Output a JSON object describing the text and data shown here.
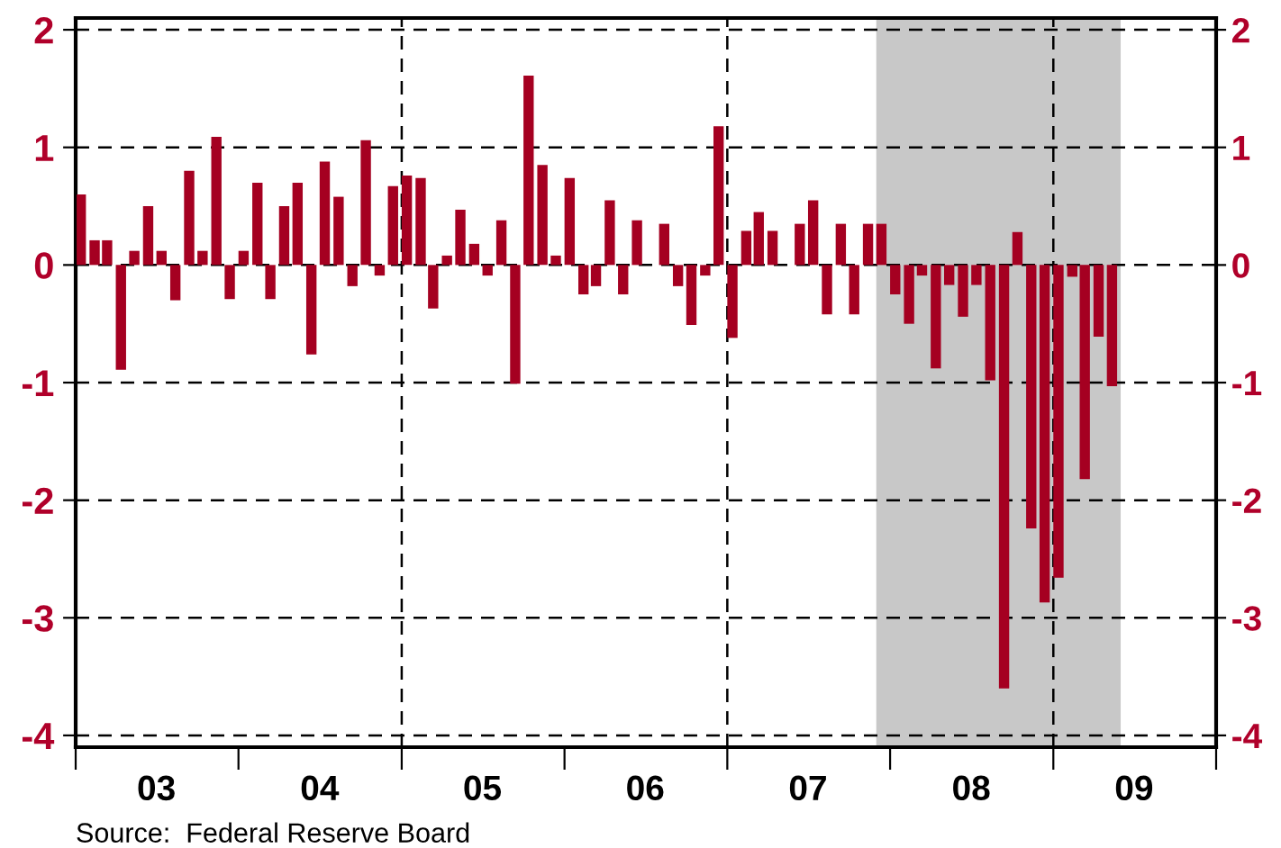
{
  "chart_data": {
    "type": "bar",
    "color": "#a50021",
    "x": [
      "2003-01",
      "2003-02",
      "2003-03",
      "2003-04",
      "2003-05",
      "2003-06",
      "2003-07",
      "2003-08",
      "2003-09",
      "2003-10",
      "2003-11",
      "2003-12",
      "2004-01",
      "2004-02",
      "2004-03",
      "2004-04",
      "2004-05",
      "2004-06",
      "2004-07",
      "2004-08",
      "2004-09",
      "2004-10",
      "2004-11",
      "2004-12",
      "2005-01",
      "2005-02",
      "2005-03",
      "2005-04",
      "2005-05",
      "2005-06",
      "2005-07",
      "2005-08",
      "2005-09",
      "2005-10",
      "2005-11",
      "2005-12",
      "2006-01",
      "2006-02",
      "2006-03",
      "2006-04",
      "2006-05",
      "2006-06",
      "2006-07",
      "2006-08",
      "2006-09",
      "2006-10",
      "2006-11",
      "2006-12",
      "2007-01",
      "2007-02",
      "2007-03",
      "2007-04",
      "2007-05",
      "2007-06",
      "2007-07",
      "2007-08",
      "2007-09",
      "2007-10",
      "2007-11",
      "2007-12",
      "2008-01",
      "2008-02",
      "2008-03",
      "2008-04",
      "2008-05",
      "2008-06",
      "2008-07",
      "2008-08",
      "2008-09",
      "2008-10",
      "2008-11",
      "2008-12",
      "2009-01",
      "2009-02",
      "2009-03",
      "2009-04",
      "2009-05"
    ],
    "values": [
      0.6,
      0.21,
      0.21,
      -0.89,
      0.12,
      0.5,
      0.12,
      -0.3,
      0.8,
      0.12,
      1.09,
      -0.29,
      0.12,
      0.7,
      -0.29,
      0.5,
      0.7,
      -0.76,
      0.88,
      0.58,
      -0.18,
      1.06,
      -0.09,
      0.67,
      0.76,
      0.74,
      -0.37,
      0.08,
      0.47,
      0.18,
      -0.09,
      0.38,
      -1.01,
      1.61,
      0.85,
      0.08,
      0.74,
      -0.25,
      -0.18,
      0.55,
      -0.25,
      0.38,
      0,
      0.35,
      -0.18,
      -0.51,
      -0.09,
      1.18,
      -0.62,
      0.29,
      0.45,
      0.29,
      0,
      0.35,
      0.55,
      -0.42,
      0.35,
      -0.42,
      0.35,
      0.35,
      -0.25,
      -0.5,
      -0.09,
      -0.88,
      -0.17,
      -0.44,
      -0.17,
      -0.98,
      -3.6,
      0.28,
      -2.24,
      -2.87,
      -2.66,
      -0.1,
      -1.82,
      -0.61,
      -1.03
    ],
    "xlim": [
      "2003-01",
      "2010-01"
    ],
    "xticks": [
      {
        "value": "2003-01",
        "label": null
      },
      {
        "value": "2003-07",
        "label": "03"
      },
      {
        "value": "2004-01",
        "label": null
      },
      {
        "value": "2004-07",
        "label": "04"
      },
      {
        "value": "2005-01",
        "label": null
      },
      {
        "value": "2005-07",
        "label": "05"
      },
      {
        "value": "2006-01",
        "label": null
      },
      {
        "value": "2006-07",
        "label": "06"
      },
      {
        "value": "2007-01",
        "label": null
      },
      {
        "value": "2007-07",
        "label": "07"
      },
      {
        "value": "2008-01",
        "label": null
      },
      {
        "value": "2008-07",
        "label": "08"
      },
      {
        "value": "2009-01",
        "label": null
      },
      {
        "value": "2009-07",
        "label": "09"
      },
      {
        "value": "2010-01",
        "label": null
      }
    ],
    "ylim": [
      -4.1,
      2.1
    ],
    "yticks": [
      -4,
      -3,
      -2,
      -1,
      0,
      1,
      2
    ],
    "y2lim": [
      -4.1,
      2.1
    ],
    "y2ticks": [
      -4,
      -3,
      -2,
      -1,
      0,
      1,
      2
    ],
    "grid": "y",
    "ref_lines": [
      {
        "axis": "x",
        "value": "2005-01",
        "color": "#000000",
        "line_style": "dashed"
      },
      {
        "axis": "x",
        "value": "2007-01",
        "color": "#000000",
        "line_style": "dashed"
      },
      {
        "axis": "x",
        "value": "2009-01",
        "color": "#000000",
        "line_style": "dashed"
      }
    ],
    "bands": [
      {
        "axis": "x",
        "from": "2007-12",
        "to": "2009-06",
        "color": "#c8c8c8"
      }
    ],
    "annotations": [
      "Source:  Federal Reserve Board"
    ]
  }
}
